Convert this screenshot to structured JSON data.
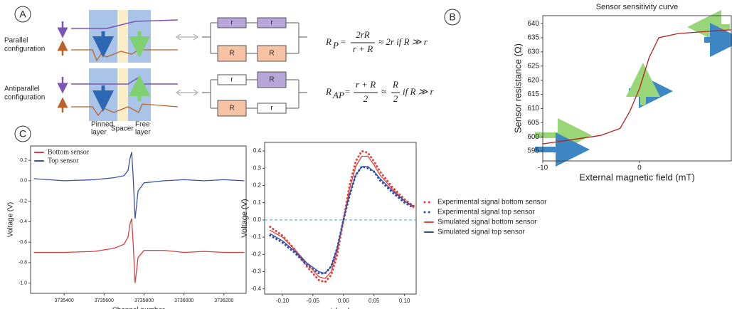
{
  "panel_labels": [
    "A",
    "B",
    "C"
  ],
  "diagram": {
    "parallel_label": [
      "Parallel",
      "configuration"
    ],
    "antiparallel_label": [
      "Antiparallel",
      "configuration"
    ],
    "layer_labels": {
      "pinned": [
        "Pinned",
        "layer"
      ],
      "spacer": "Spacer",
      "free": [
        "Free",
        "layer"
      ]
    },
    "circuit_p": {
      "top": [
        "r",
        "r"
      ],
      "bottom": [
        "R",
        "R"
      ]
    },
    "circuit_ap": {
      "top": [
        "r",
        "R"
      ],
      "bottom": [
        "R",
        "r"
      ]
    },
    "formula_p": {
      "lhs": "R",
      "sub": "P",
      "eq": "=",
      "num": "2rR",
      "den": "r + R",
      "tail": "≈ 2r if R ≫ r"
    },
    "formula_ap": {
      "lhs": "R",
      "sub": "AP",
      "eq": "=",
      "num": "r + R",
      "den": "2",
      "approx": "≈",
      "num2": "R",
      "den2": "2",
      "tail": "if R ≫ r"
    }
  },
  "chart_data": [
    {
      "type": "line",
      "title": "Sensor sensitivity curve",
      "x_label": "External magnetic field (mT)",
      "y_label": "Sensor resistance (Ω)",
      "x": [
        -10,
        -8,
        -6,
        -4,
        -2,
        -1,
        0,
        1,
        2,
        4,
        6,
        8,
        9.5
      ],
      "series": [
        {
          "name": null,
          "color": "#b22222",
          "style": "solid",
          "values": [
            597.5,
            598.5,
            599.5,
            600.5,
            603,
            609,
            617,
            628,
            635,
            636.5,
            637,
            637.5,
            637.8
          ]
        }
      ],
      "xlim": [
        -10,
        9.5
      ],
      "ylim": [
        591.5,
        642.8
      ],
      "xticks": [
        -10,
        0
      ],
      "yticks": [
        595,
        600,
        605,
        610,
        615,
        620,
        625,
        630,
        635,
        640
      ],
      "legend": null
    },
    {
      "type": "line",
      "x_label": "Channel number",
      "y_label": "Voltage (V)",
      "x": [
        3735250,
        3735400,
        3735550,
        3735650,
        3735700,
        3735720,
        3735730,
        3735738,
        3735745,
        3735755,
        3735770,
        3735800,
        3735900,
        3736000,
        3736100,
        3736200,
        3736300
      ],
      "series": [
        {
          "name": "Bottom sensor",
          "color": "#d9413f",
          "style": "solid",
          "values": [
            -0.7,
            -0.7,
            -0.69,
            -0.66,
            -0.62,
            -0.55,
            -0.42,
            -0.37,
            -0.6,
            -1.0,
            -0.75,
            -0.68,
            -0.68,
            -0.7,
            -0.69,
            -0.7,
            -0.7
          ]
        },
        {
          "name": "Top sensor",
          "color": "#3a52a4",
          "style": "solid",
          "values": [
            0.02,
            0.0,
            0.01,
            0.03,
            0.05,
            0.1,
            0.22,
            0.28,
            0.05,
            -0.37,
            -0.1,
            -0.02,
            0.0,
            0.01,
            0.0,
            0.01,
            0.0
          ]
        }
      ],
      "xlim": [
        3735232,
        3736311
      ],
      "ylim": [
        -1.1,
        0.34
      ],
      "xticks": [
        3735400,
        3735600,
        3735800,
        3736000,
        3736200
      ],
      "yticks": [
        0.2,
        {
          "value": 0,
          "label": "0.0"
        },
        -0.2,
        -0.4,
        -0.6,
        -0.8,
        {
          "value": -1,
          "label": "-1.0"
        }
      ],
      "legend": "upper left"
    },
    {
      "type": "line",
      "x_label": "t (ms)",
      "y_label": "Voltage (V)",
      "x": [
        -0.12,
        -0.1,
        -0.08,
        -0.06,
        -0.04,
        -0.03,
        -0.02,
        -0.01,
        0,
        0.01,
        0.02,
        0.03,
        0.04,
        0.05,
        0.06,
        0.08,
        0.1,
        0.115
      ],
      "series": [
        {
          "name": "Experimental signal  bottom sensor",
          "color": "#e8403c",
          "style": "dotted",
          "values": [
            -0.04,
            -0.09,
            -0.17,
            -0.27,
            -0.35,
            -0.36,
            -0.32,
            -0.2,
            0.0,
            0.2,
            0.34,
            0.4,
            0.39,
            0.34,
            0.28,
            0.19,
            0.12,
            0.08
          ]
        },
        {
          "name": "Experimental signal top sensor",
          "color": "#2f4fa8",
          "style": "dotted",
          "values": [
            -0.09,
            -0.13,
            -0.19,
            -0.26,
            -0.31,
            -0.31,
            -0.27,
            -0.16,
            0.0,
            0.14,
            0.26,
            0.31,
            0.3,
            0.28,
            0.23,
            0.16,
            0.1,
            0.07
          ]
        },
        {
          "name": "Simulated signal bottom sensor",
          "color": "#e8403c",
          "style": "solid",
          "values": [
            -0.06,
            -0.1,
            -0.17,
            -0.25,
            -0.33,
            -0.34,
            -0.3,
            -0.18,
            0.0,
            0.18,
            0.31,
            0.37,
            0.37,
            0.32,
            0.26,
            0.18,
            0.11,
            0.07
          ]
        },
        {
          "name": "Simulated signal top sensor",
          "color": "#2f4fa8",
          "style": "solid",
          "values": [
            -0.08,
            -0.12,
            -0.18,
            -0.25,
            -0.3,
            -0.31,
            -0.27,
            -0.16,
            0.0,
            0.15,
            0.26,
            0.31,
            0.31,
            0.28,
            0.24,
            0.17,
            0.11,
            0.08
          ]
        }
      ],
      "xlim": [
        -0.129,
        0.119
      ],
      "ylim": [
        -0.43,
        0.45
      ],
      "xticks": [
        {
          "value": -0.1,
          "label": "-0.10"
        },
        -0.05,
        {
          "value": 0,
          "label": "0.00"
        },
        0.05,
        {
          "value": 0.1,
          "label": "0.10"
        }
      ],
      "yticks": [
        -0.4,
        -0.3,
        -0.2,
        -0.1,
        {
          "value": 0,
          "label": "0.0"
        },
        0.1,
        0.2,
        0.3,
        0.4
      ],
      "hline": {
        "value": 0,
        "color": "#5b9bd5"
      },
      "legend": "outside right"
    }
  ]
}
